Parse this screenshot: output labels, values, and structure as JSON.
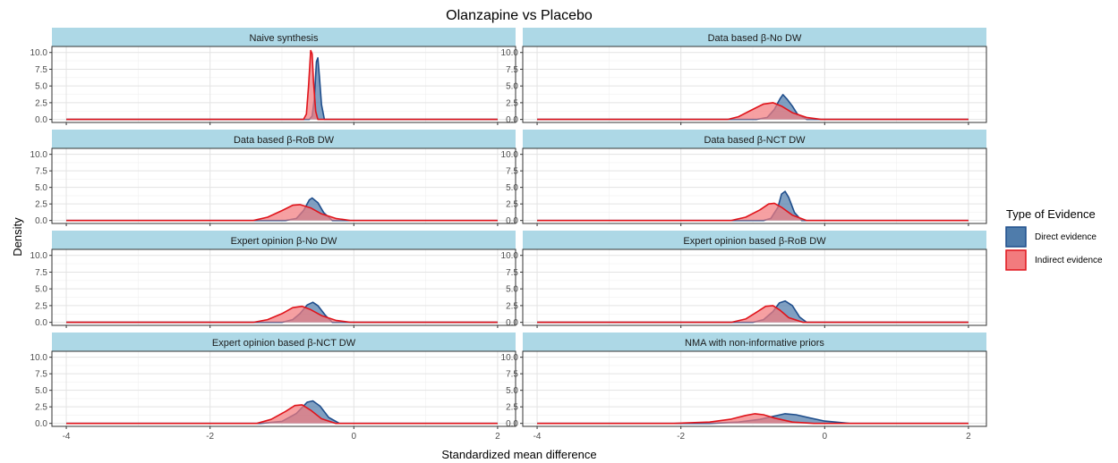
{
  "chart_data": {
    "type": "area",
    "title": "Olanzapine vs Placebo",
    "xlabel": "Standardized mean difference",
    "ylabel": "Density",
    "xlim": [
      -4.2,
      2.25
    ],
    "ylim": [
      -0.45,
      10.9
    ],
    "x_ticks": [
      -4,
      -2,
      0,
      2
    ],
    "y_ticks": [
      0.0,
      2.5,
      5.0,
      7.5,
      10.0
    ],
    "y_tick_labels": [
      "0.0",
      "2.5",
      "5.0",
      "7.5",
      "10.0"
    ],
    "x_tick_labels": [
      "-4",
      "-2",
      "0",
      "2"
    ],
    "grid": true,
    "legend": {
      "title": "Type of Evidence",
      "position": "right",
      "entries": [
        "Direct evidence",
        "Indirect evidence"
      ]
    },
    "series_styles": {
      "Direct evidence": {
        "fill": "#4f7cab",
        "stroke": "#1f4e8c"
      },
      "Indirect evidence": {
        "fill": "#f27b7e",
        "stroke": "#e0141b"
      }
    },
    "panels": [
      {
        "label": "Naive synthesis",
        "series": [
          {
            "name": "Direct evidence",
            "x": [
              -4,
              -0.62,
              -0.58,
              -0.55,
              -0.52,
              -0.5,
              -0.48,
              -0.45,
              -0.41,
              2
            ],
            "y": [
              0,
              0,
              0.5,
              3,
              8.6,
              9.2,
              6.5,
              2.2,
              0,
              0
            ]
          },
          {
            "name": "Indirect evidence",
            "x": [
              -4,
              -0.7,
              -0.66,
              -0.63,
              -0.6,
              -0.58,
              -0.56,
              -0.53,
              -0.5,
              2
            ],
            "y": [
              0,
              0,
              0.8,
              5,
              10.3,
              9.8,
              5.5,
              1.2,
              0,
              0
            ]
          }
        ]
      },
      {
        "label": "Data based β-No DW",
        "series": [
          {
            "name": "Direct evidence",
            "x": [
              -4,
              -0.95,
              -0.8,
              -0.7,
              -0.62,
              -0.58,
              -0.52,
              -0.45,
              -0.38,
              -0.25,
              2
            ],
            "y": [
              0,
              0,
              0.3,
              1.5,
              3.1,
              3.7,
              3.0,
              2.0,
              0.8,
              0,
              0
            ]
          },
          {
            "name": "Indirect evidence",
            "x": [
              -4,
              -1.35,
              -1.2,
              -1.0,
              -0.85,
              -0.72,
              -0.6,
              -0.45,
              -0.25,
              -0.05,
              2
            ],
            "y": [
              0,
              0,
              0.4,
              1.5,
              2.3,
              2.5,
              2.0,
              1.0,
              0.3,
              0,
              0
            ]
          }
        ]
      },
      {
        "label": "Data based β-RoB DW",
        "series": [
          {
            "name": "Direct evidence",
            "x": [
              -4,
              -0.95,
              -0.8,
              -0.7,
              -0.62,
              -0.58,
              -0.5,
              -0.42,
              -0.3,
              2
            ],
            "y": [
              0,
              0,
              0.3,
              1.5,
              3.1,
              3.4,
              2.7,
              1.2,
              0,
              0
            ]
          },
          {
            "name": "Indirect evidence",
            "x": [
              -4,
              -1.4,
              -1.2,
              -1.0,
              -0.85,
              -0.75,
              -0.6,
              -0.45,
              -0.25,
              -0.05,
              2
            ],
            "y": [
              0,
              0,
              0.5,
              1.5,
              2.3,
              2.4,
              1.9,
              1.0,
              0.3,
              0,
              0
            ]
          }
        ]
      },
      {
        "label": "Data based β-NCT DW",
        "series": [
          {
            "name": "Direct evidence",
            "x": [
              -4,
              -0.85,
              -0.75,
              -0.65,
              -0.6,
              -0.55,
              -0.5,
              -0.42,
              -0.32,
              2
            ],
            "y": [
              0,
              0,
              0.3,
              2.0,
              4.0,
              4.4,
              3.5,
              1.2,
              0,
              0
            ]
          },
          {
            "name": "Indirect evidence",
            "x": [
              -4,
              -1.3,
              -1.1,
              -0.9,
              -0.78,
              -0.7,
              -0.6,
              -0.45,
              -0.25,
              2
            ],
            "y": [
              0,
              0,
              0.5,
              1.6,
              2.5,
              2.6,
              2.0,
              0.8,
              0,
              0
            ]
          }
        ]
      },
      {
        "label": "Expert opinion β-No DW",
        "series": [
          {
            "name": "Direct evidence",
            "x": [
              -4,
              -1.0,
              -0.85,
              -0.75,
              -0.65,
              -0.57,
              -0.5,
              -0.4,
              -0.3,
              2
            ],
            "y": [
              0,
              0,
              0.4,
              1.3,
              2.6,
              3.0,
              2.5,
              1.1,
              0,
              0
            ]
          },
          {
            "name": "Indirect evidence",
            "x": [
              -4,
              -1.4,
              -1.2,
              -1.0,
              -0.85,
              -0.72,
              -0.6,
              -0.45,
              -0.25,
              -0.05,
              2
            ],
            "y": [
              0,
              0,
              0.4,
              1.3,
              2.2,
              2.4,
              1.9,
              1.0,
              0.3,
              0,
              0
            ]
          }
        ]
      },
      {
        "label": "Expert opinion based β-RoB DW",
        "series": [
          {
            "name": "Direct evidence",
            "x": [
              -4,
              -1.0,
              -0.85,
              -0.72,
              -0.63,
              -0.55,
              -0.45,
              -0.35,
              -0.25,
              2
            ],
            "y": [
              0,
              0,
              0.4,
              1.6,
              2.9,
              3.2,
              2.5,
              0.8,
              0,
              0
            ]
          },
          {
            "name": "Indirect evidence",
            "x": [
              -4,
              -1.3,
              -1.1,
              -0.95,
              -0.82,
              -0.72,
              -0.62,
              -0.5,
              -0.3,
              2
            ],
            "y": [
              0,
              0,
              0.5,
              1.5,
              2.4,
              2.5,
              1.8,
              0.7,
              0,
              0
            ]
          }
        ]
      },
      {
        "label": "Expert opinion based β-NCT DW",
        "series": [
          {
            "name": "Direct evidence",
            "x": [
              -4,
              -1.3,
              -1.0,
              -0.8,
              -0.65,
              -0.57,
              -0.47,
              -0.35,
              -0.2,
              2
            ],
            "y": [
              0,
              0,
              0.3,
              1.5,
              3.2,
              3.4,
              2.6,
              0.9,
              0,
              0
            ]
          },
          {
            "name": "Indirect evidence",
            "x": [
              -4,
              -1.35,
              -1.15,
              -0.95,
              -0.82,
              -0.72,
              -0.6,
              -0.45,
              -0.25,
              2
            ],
            "y": [
              0,
              0,
              0.6,
              1.8,
              2.7,
              2.8,
              2.0,
              0.7,
              0,
              0
            ]
          }
        ]
      },
      {
        "label": "NMA with non-informative priors",
        "series": [
          {
            "name": "Direct evidence",
            "x": [
              -4,
              -1.6,
              -1.2,
              -0.9,
              -0.7,
              -0.55,
              -0.4,
              -0.2,
              0.0,
              0.35,
              2
            ],
            "y": [
              0,
              0,
              0.2,
              0.6,
              1.1,
              1.45,
              1.3,
              0.8,
              0.35,
              0,
              0
            ]
          },
          {
            "name": "Indirect evidence",
            "x": [
              -4,
              -2.1,
              -1.6,
              -1.3,
              -1.1,
              -0.97,
              -0.85,
              -0.7,
              -0.45,
              -0.15,
              2
            ],
            "y": [
              0,
              0,
              0.2,
              0.65,
              1.2,
              1.45,
              1.3,
              0.8,
              0.2,
              0,
              0
            ]
          }
        ]
      }
    ]
  }
}
